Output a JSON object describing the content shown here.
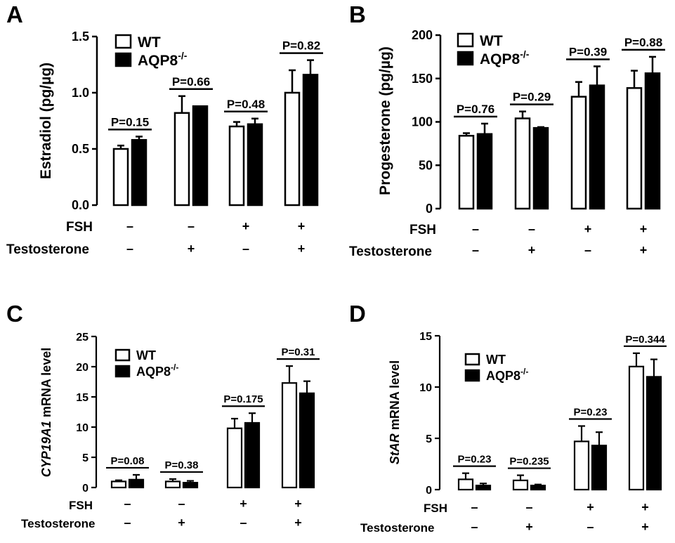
{
  "legend": {
    "wt": "WT",
    "ko": "AQP8",
    "ko_sup": "-/-"
  },
  "conditions": {
    "fsh_label": "FSH",
    "testosterone_label": "Testosterone",
    "fsh_signs": [
      "–",
      "–",
      "+",
      "+"
    ],
    "testosterone_signs": [
      "–",
      "+",
      "–",
      "+"
    ]
  },
  "colors": {
    "wt_fill": "#ffffff",
    "ko_fill": "#000000",
    "stroke": "#000000"
  },
  "chart_data": [
    {
      "panel": "A",
      "type": "bar",
      "ylabel": "Estradiol (pg/µg)",
      "ylabel_italic": "",
      "ylim": [
        0,
        1.5
      ],
      "yticks": [
        "0.0",
        "0.5",
        "1.0",
        "1.5"
      ],
      "ytick_values": [
        0,
        0.5,
        1.0,
        1.5
      ],
      "series": [
        {
          "name": "WT",
          "values": [
            0.5,
            0.82,
            0.7,
            1.0
          ],
          "errors": [
            0.03,
            0.15,
            0.04,
            0.2
          ]
        },
        {
          "name": "AQP8-/-",
          "values": [
            0.58,
            0.88,
            0.72,
            1.16
          ],
          "errors": [
            0.03,
            0.0,
            0.05,
            0.13
          ]
        }
      ],
      "pvalues": [
        "P=0.15",
        "P=0.66",
        "P=0.48",
        "P=0.82"
      ]
    },
    {
      "panel": "B",
      "type": "bar",
      "ylabel": "Progesterone (pg/µg)",
      "ylabel_italic": "",
      "ylim": [
        0,
        200
      ],
      "yticks": [
        "0",
        "50",
        "100",
        "150",
        "200"
      ],
      "ytick_values": [
        0,
        50,
        100,
        150,
        200
      ],
      "series": [
        {
          "name": "WT",
          "values": [
            84,
            104,
            129,
            139
          ],
          "errors": [
            3,
            8,
            17,
            20
          ]
        },
        {
          "name": "AQP8-/-",
          "values": [
            86,
            93,
            142,
            156
          ],
          "errors": [
            12,
            1,
            22,
            19
          ]
        }
      ],
      "pvalues": [
        "P=0.76",
        "P=0.29",
        "P=0.39",
        "P=0.88"
      ]
    },
    {
      "panel": "C",
      "type": "bar",
      "ylabel": " mRNA level",
      "ylabel_italic": "CYP19A1",
      "ylim": [
        0,
        25
      ],
      "yticks": [
        "0",
        "5",
        "10",
        "15",
        "20",
        "25"
      ],
      "ytick_values": [
        0,
        5,
        10,
        15,
        20,
        25
      ],
      "series": [
        {
          "name": "WT",
          "values": [
            1.0,
            1.0,
            9.8,
            17.3
          ],
          "errors": [
            0.2,
            0.4,
            1.6,
            2.8
          ]
        },
        {
          "name": "AQP8-/-",
          "values": [
            1.3,
            0.8,
            10.7,
            15.6
          ],
          "errors": [
            0.8,
            0.3,
            1.6,
            2.0
          ]
        }
      ],
      "pvalues": [
        "P=0.08",
        "P=0.38",
        "P=0.175",
        "P=0.31"
      ]
    },
    {
      "panel": "D",
      "type": "bar",
      "ylabel": " mRNA level",
      "ylabel_italic": "StAR",
      "ylim": [
        0,
        15
      ],
      "yticks": [
        "0",
        "5",
        "10",
        "15"
      ],
      "ytick_values": [
        0,
        5,
        10,
        15
      ],
      "series": [
        {
          "name": "WT",
          "values": [
            1.0,
            0.9,
            4.7,
            12.0
          ],
          "errors": [
            0.6,
            0.5,
            1.5,
            1.3
          ]
        },
        {
          "name": "AQP8-/-",
          "values": [
            0.4,
            0.4,
            4.3,
            11.0
          ],
          "errors": [
            0.2,
            0.1,
            1.3,
            1.7
          ]
        }
      ],
      "pvalues": [
        "P=0.23",
        "P=0.235",
        "P=0.23",
        "P=0.344"
      ]
    }
  ]
}
